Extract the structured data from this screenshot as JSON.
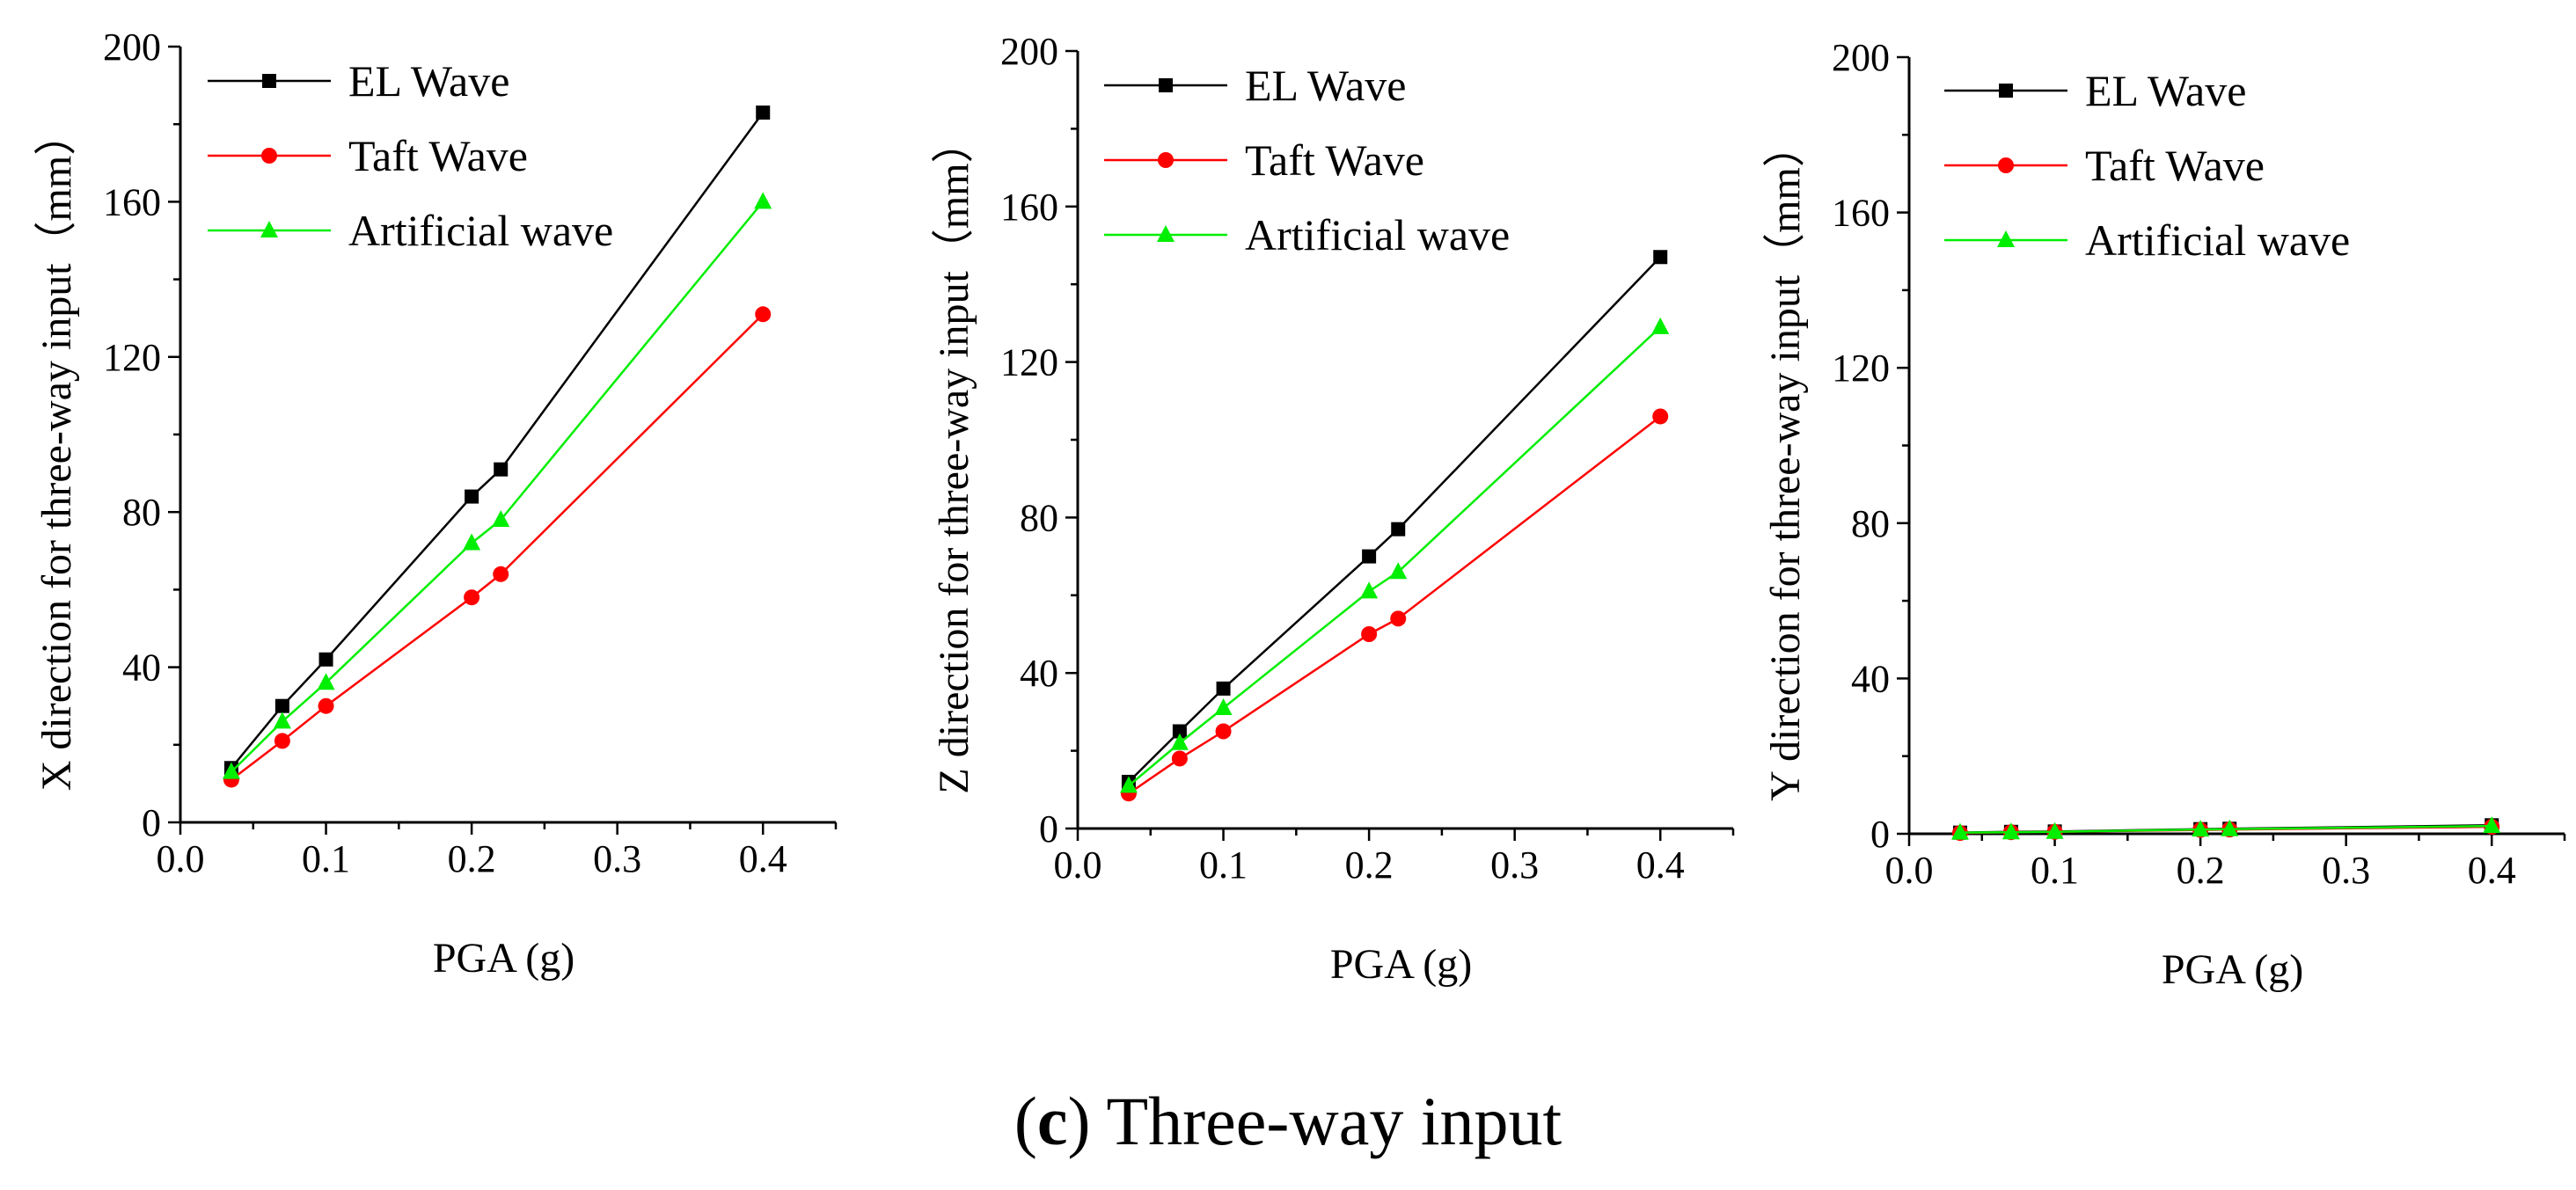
{
  "caption": {
    "letter": "c",
    "text": " Three-way input",
    "open": "(",
    "close": ")"
  },
  "colors": {
    "EL Wave": "#000000",
    "Taft Wave": "#ff0000",
    "Artificial wave": "#00ee00"
  },
  "chart_data": [
    {
      "type": "line",
      "title": "",
      "xlabel": "PGA (g)",
      "ylabel": "X direction for three-way input（mm）",
      "xlim": [
        0.0,
        0.45
      ],
      "ylim": [
        0,
        200
      ],
      "xticks": [
        0.0,
        0.1,
        0.2,
        0.3,
        0.4
      ],
      "xtick_labels": [
        "0.0",
        "0.1",
        "0.2",
        "0.3",
        "0.4"
      ],
      "yticks": [
        0,
        40,
        80,
        120,
        160,
        200
      ],
      "ytick_labels": [
        "0",
        "40",
        "80",
        "120",
        "160",
        "200"
      ],
      "legend": "top-left",
      "x": [
        0.035,
        0.07,
        0.1,
        0.2,
        0.22,
        0.4
      ],
      "series": [
        {
          "name": "EL Wave",
          "marker": "square",
          "values": [
            14,
            30,
            42,
            84,
            91,
            183
          ]
        },
        {
          "name": "Taft Wave",
          "marker": "circle",
          "values": [
            11,
            21,
            30,
            58,
            64,
            131
          ]
        },
        {
          "name": "Artificial wave",
          "marker": "triangle",
          "values": [
            13,
            26,
            36,
            72,
            78,
            160
          ]
        }
      ]
    },
    {
      "type": "line",
      "title": "",
      "xlabel": "PGA (g)",
      "ylabel": "Z direction for three-way input（mm）",
      "xlim": [
        0.0,
        0.45
      ],
      "ylim": [
        0,
        200
      ],
      "xticks": [
        0.0,
        0.1,
        0.2,
        0.3,
        0.4
      ],
      "xtick_labels": [
        "0.0",
        "0.1",
        "0.2",
        "0.3",
        "0.4"
      ],
      "yticks": [
        0,
        40,
        80,
        120,
        160,
        200
      ],
      "ytick_labels": [
        "0",
        "40",
        "80",
        "120",
        "160",
        "200"
      ],
      "legend": "top-left",
      "x": [
        0.035,
        0.07,
        0.1,
        0.2,
        0.22,
        0.4
      ],
      "series": [
        {
          "name": "EL Wave",
          "marker": "square",
          "values": [
            12,
            25,
            36,
            70,
            77,
            147
          ]
        },
        {
          "name": "Taft Wave",
          "marker": "circle",
          "values": [
            9,
            18,
            25,
            50,
            54,
            106
          ]
        },
        {
          "name": "Artificial wave",
          "marker": "triangle",
          "values": [
            11,
            22,
            31,
            61,
            66,
            129
          ]
        }
      ]
    },
    {
      "type": "line",
      "title": "",
      "xlabel": "PGA (g)",
      "ylabel": "Y direction for three-way input（mm）",
      "xlim": [
        0.0,
        0.45
      ],
      "ylim": [
        0,
        200
      ],
      "xticks": [
        0.0,
        0.1,
        0.2,
        0.3,
        0.4
      ],
      "xtick_labels": [
        "0.0",
        "0.1",
        "0.2",
        "0.3",
        "0.4"
      ],
      "yticks": [
        0,
        40,
        80,
        120,
        160,
        200
      ],
      "ytick_labels": [
        "0",
        "40",
        "80",
        "120",
        "160",
        "200"
      ],
      "legend": "top-left",
      "x": [
        0.035,
        0.07,
        0.1,
        0.2,
        0.22,
        0.4
      ],
      "series": [
        {
          "name": "EL Wave",
          "marker": "square",
          "values": [
            0.3,
            0.5,
            0.6,
            1.2,
            1.3,
            2.2
          ]
        },
        {
          "name": "Taft Wave",
          "marker": "circle",
          "values": [
            0.2,
            0.4,
            0.5,
            1.0,
            1.1,
            1.8
          ]
        },
        {
          "name": "Artificial wave",
          "marker": "triangle",
          "values": [
            0.3,
            0.4,
            0.5,
            1.1,
            1.2,
            2.0
          ]
        }
      ]
    }
  ]
}
